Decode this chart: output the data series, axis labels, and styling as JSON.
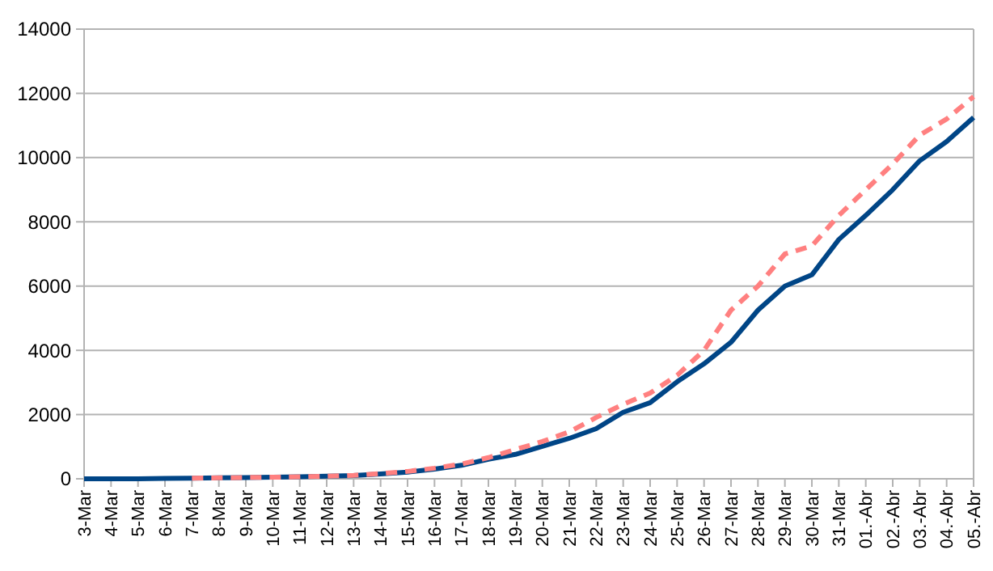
{
  "chart_data": {
    "type": "line",
    "categories": [
      "3-Mar",
      "4-Mar",
      "5-Mar",
      "6-Mar",
      "7-Mar",
      "8-Mar",
      "9-Mar",
      "10-Mar",
      "11-Mar",
      "12-Mar",
      "13-Mar",
      "14-Mar",
      "15-Mar",
      "16-Mar",
      "17-Mar",
      "18-Mar",
      "19-Mar",
      "20-Mar",
      "21-Mar",
      "22-Mar",
      "23-Mar",
      "24-Mar",
      "25-Mar",
      "26-Mar",
      "27-Mar",
      "28-Mar",
      "29-Mar",
      "30-Mar",
      "31-Mar",
      "01.-Abr",
      "02.-Abr",
      "03.-Abr",
      "04.-Abr",
      "05.-Abr"
    ],
    "series": [
      {
        "color": "#004586",
        "line_style": "solid",
        "values": [
          0,
          0,
          0,
          10,
          20,
          30,
          40,
          50,
          60,
          80,
          100,
          150,
          210,
          300,
          420,
          610,
          760,
          1010,
          1260,
          1560,
          2070,
          2370,
          3020,
          3580,
          4250,
          5250,
          6000,
          6350,
          7450,
          8200,
          9000,
          9900,
          10500,
          11250
        ]
      },
      {
        "color": "#ff8080",
        "line_style": "dashed",
        "values": [
          null,
          null,
          null,
          null,
          20,
          30,
          40,
          50,
          60,
          80,
          110,
          160,
          230,
          330,
          460,
          660,
          910,
          1160,
          1460,
          1910,
          2320,
          2670,
          3220,
          4000,
          5250,
          6000,
          7000,
          7250,
          8200,
          9000,
          9800,
          10700,
          11200,
          11900
        ]
      }
    ],
    "ylim": [
      0,
      14000
    ],
    "yticks": [
      0,
      2000,
      4000,
      6000,
      8000,
      10000,
      12000,
      14000
    ],
    "grid": "y"
  }
}
